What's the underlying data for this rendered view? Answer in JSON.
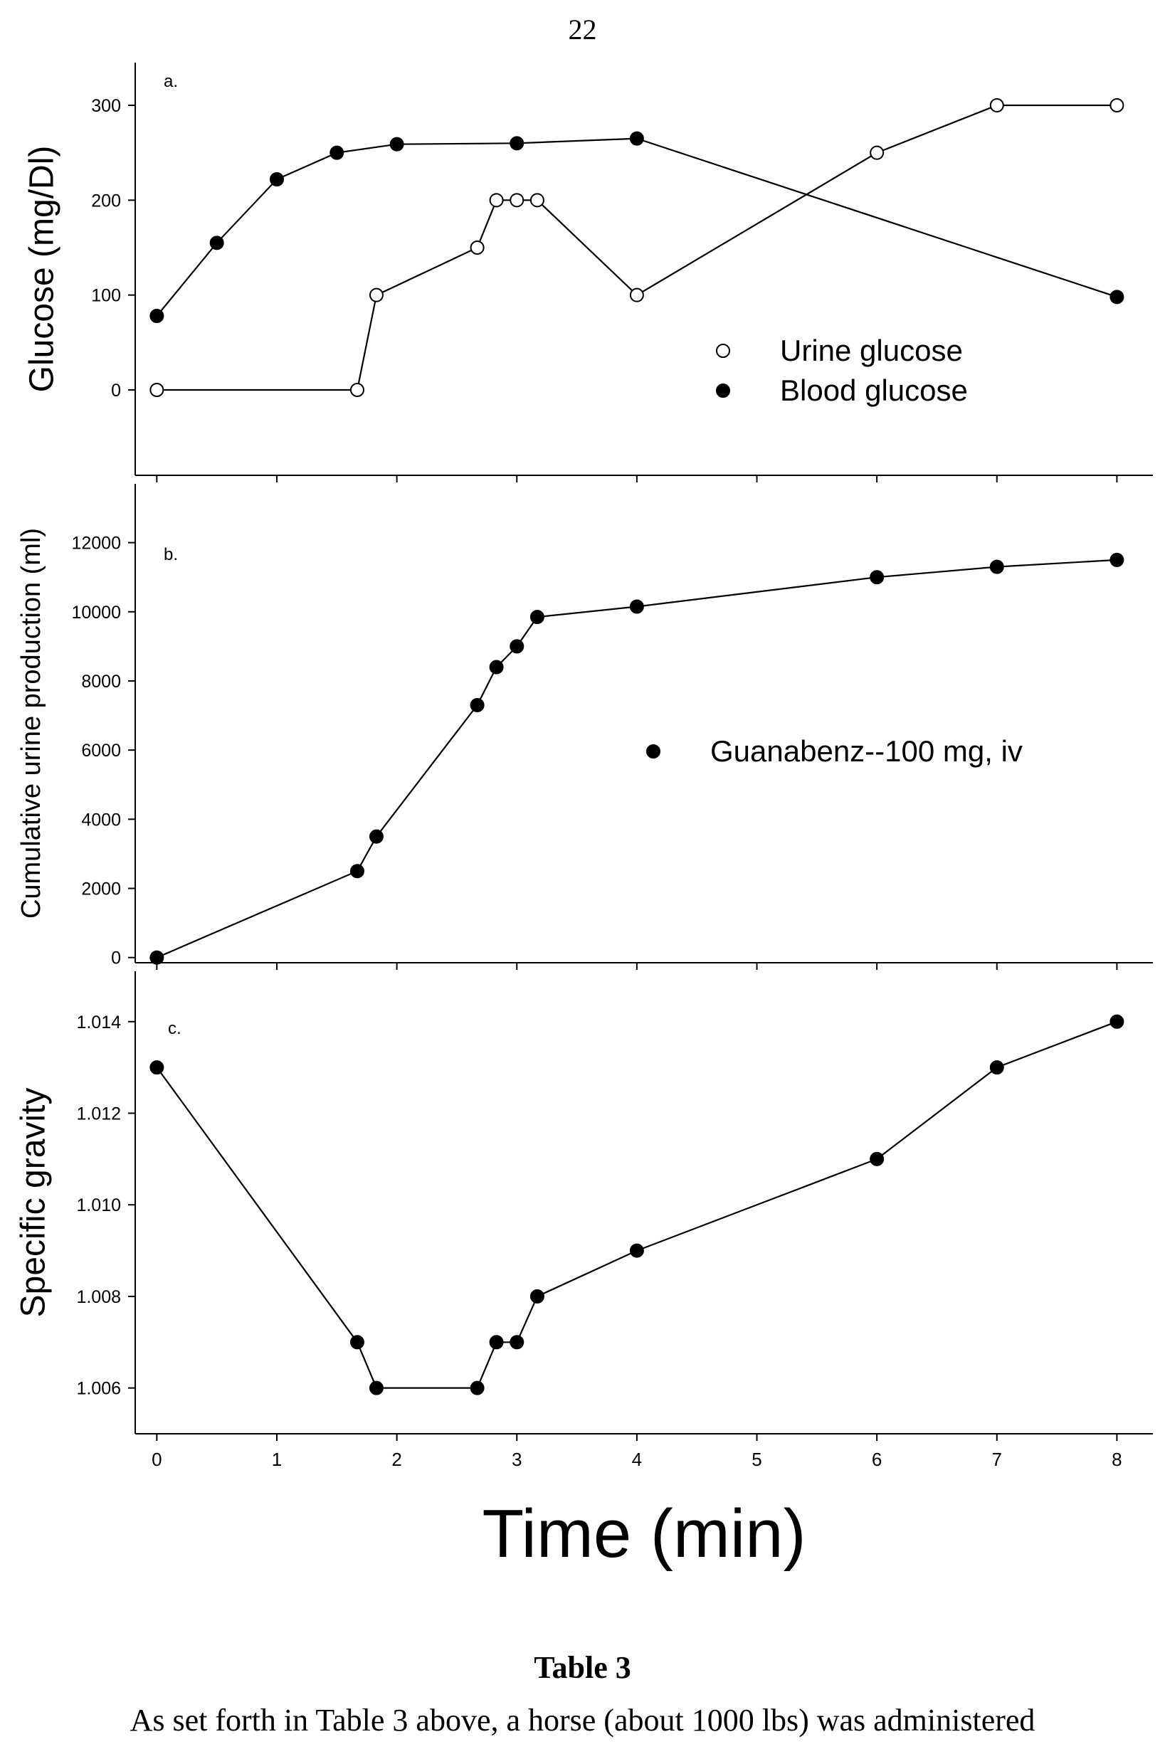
{
  "page_number": "22",
  "caption": "Table 3",
  "body_text": "As set forth in Table 3 above, a horse (about 1000 lbs) was administered",
  "chart_data": [
    {
      "type": "line",
      "panel_label": "a.",
      "title": "",
      "ylabel": "Glucose (mg/Dl)",
      "ylim": [
        -90,
        345
      ],
      "yticks": [
        0,
        100,
        200,
        300
      ],
      "xlim": [
        -0.18,
        8.3
      ],
      "legend_position": "lower-right",
      "series": [
        {
          "name": "Urine glucose",
          "marker": "open-circle",
          "x": [
            0,
            1.67,
            1.83,
            2.67,
            2.83,
            3.0,
            3.17,
            4.0,
            6.0,
            7.0,
            8.0
          ],
          "y": [
            0,
            0,
            100,
            150,
            200,
            200,
            200,
            100,
            250,
            300,
            300
          ]
        },
        {
          "name": "Blood glucose",
          "marker": "filled-circle",
          "x": [
            0,
            0.5,
            1.0,
            1.5,
            2.0,
            3.0,
            4.0,
            8.0
          ],
          "y": [
            78,
            155,
            222,
            250,
            259,
            260,
            265,
            98
          ]
        }
      ]
    },
    {
      "type": "line",
      "panel_label": "b.",
      "title": "",
      "ylabel": "Cumulative urine production (ml)",
      "ylim": [
        -150,
        13700
      ],
      "yticks": [
        0,
        2000,
        4000,
        6000,
        8000,
        10000,
        12000
      ],
      "xlim": [
        -0.18,
        8.3
      ],
      "legend_position": "center-right",
      "series": [
        {
          "name": "Guanabenz--100 mg, iv",
          "marker": "filled-circle",
          "x": [
            0,
            1.67,
            1.83,
            2.67,
            2.83,
            3.0,
            3.17,
            4.0,
            6.0,
            7.0,
            8.0
          ],
          "y": [
            0,
            2500,
            3500,
            7300,
            8400,
            9000,
            9850,
            10150,
            11000,
            11300,
            11500
          ]
        }
      ]
    },
    {
      "type": "line",
      "panel_label": "c.",
      "title": "",
      "ylabel": "Specific gravity",
      "xlabel": "Time (min)",
      "ylim": [
        1.005,
        1.0151
      ],
      "yticks": [
        "1.006",
        "1.008",
        "1.010",
        "1.012",
        "1.014"
      ],
      "xlim": [
        -0.18,
        8.3
      ],
      "xticks": [
        0,
        1,
        2,
        3,
        4,
        5,
        6,
        7,
        8
      ],
      "series": [
        {
          "name": "",
          "marker": "filled-circle",
          "x": [
            0,
            1.67,
            1.83,
            2.67,
            2.83,
            3.0,
            3.17,
            4.0,
            6.0,
            7.0,
            8.0
          ],
          "y": [
            1.013,
            1.007,
            1.006,
            1.006,
            1.007,
            1.007,
            1.008,
            1.009,
            1.011,
            1.013,
            1.014
          ]
        }
      ]
    }
  ]
}
